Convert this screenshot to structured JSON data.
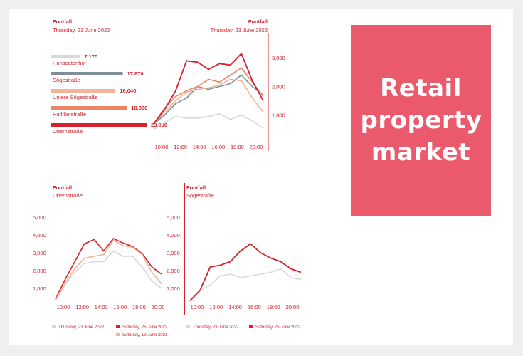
{
  "hero": {
    "title": "Retail property market"
  },
  "colors": {
    "brand_red": "#d3212d",
    "card": "#ea5a6c",
    "grey": "#d8d8d8",
    "slate": "#7f8f9a",
    "peach": "#f2b49a",
    "orange": "#ea8566"
  },
  "chart_data": [
    {
      "type": "bar",
      "title": "Footfall",
      "subtitle": "Thursday, 23 June 2022",
      "categories": [
        "Hanseatenhof",
        "Sögestraße",
        "Untere Sögestraße",
        "Hutfilterstraße",
        "Obernstraße"
      ],
      "values": [
        7170,
        17870,
        16040,
        18880,
        23800
      ],
      "value_labels": [
        "7,170",
        "17,870",
        "16,040",
        "18,880",
        "23,800"
      ],
      "xlim": [
        0,
        23800
      ]
    },
    {
      "type": "line",
      "title": "Footfall",
      "subtitle": "Thursday, 23 June 2022",
      "x": [
        10,
        11,
        12,
        13,
        14,
        15,
        16,
        17,
        18,
        19,
        20
      ],
      "xticks": [
        "10:00",
        "12:00",
        "14:00",
        "16:00",
        "18:00",
        "20:00"
      ],
      "yticks": [
        "1,000",
        "2,000",
        "3,000"
      ],
      "ylim": [
        0,
        3900
      ],
      "y_axis_side": "right",
      "series": [
        {
          "color": "#d8d8d8",
          "values": [
            500,
            750,
            950,
            900,
            900,
            950,
            1050,
            850,
            1000,
            800,
            550
          ]
        },
        {
          "color": "#7f8f9a",
          "values": [
            700,
            1000,
            1400,
            1600,
            2000,
            1900,
            2000,
            2100,
            2400,
            2000,
            1700
          ]
        },
        {
          "color": "#f2b49a",
          "values": [
            700,
            1100,
            1500,
            1800,
            1900,
            1950,
            2050,
            2250,
            2200,
            1600,
            1100
          ]
        },
        {
          "color": "#ea8566",
          "values": [
            700,
            1250,
            1650,
            1850,
            2000,
            2250,
            2150,
            2400,
            2650,
            2150,
            1650
          ]
        },
        {
          "color": "#d3212d",
          "values": [
            700,
            1200,
            1850,
            2900,
            2850,
            2600,
            2800,
            2750,
            3150,
            2200,
            1500
          ]
        }
      ]
    },
    {
      "type": "line",
      "title": "Footfall",
      "subtitle": "Obernstraße",
      "x": [
        9,
        10,
        11,
        12,
        13,
        14,
        15,
        16,
        17,
        18,
        19,
        20
      ],
      "xticks": [
        "10:00",
        "12:00",
        "14:00",
        "16:00",
        "18:00",
        "20:00"
      ],
      "yticks": [
        "1,000",
        "2,000",
        "3,000",
        "4,000",
        "5,000"
      ],
      "ylim": [
        0,
        5600
      ],
      "series": [
        {
          "name": "Thursday, 23 June 2022",
          "color": "#d8d8d8",
          "values": [
            300,
            1200,
            1900,
            2400,
            2500,
            2500,
            3100,
            2800,
            2800,
            2200,
            1400,
            1000
          ]
        },
        {
          "name": "Saturday, 25 June 2022",
          "color": "#d3212d",
          "values": [
            400,
            1500,
            2500,
            3500,
            3750,
            3100,
            3800,
            3550,
            3350,
            2950,
            2200,
            1800
          ]
        },
        {
          "name": "Saturday, 19 June 2021",
          "color": "#f2b49a",
          "values": [
            350,
            1300,
            2100,
            2700,
            2800,
            2900,
            3700,
            3400,
            3300,
            2900,
            1900,
            1250
          ]
        }
      ],
      "legend": "bottom"
    },
    {
      "type": "line",
      "title": "Footfall",
      "subtitle": "Sögestraße",
      "x": [
        9,
        10,
        11,
        12,
        13,
        14,
        15,
        16,
        17,
        18,
        19,
        20
      ],
      "xticks": [
        "10:00",
        "12:00",
        "14:00",
        "16:00",
        "18:00",
        "20:00"
      ],
      "yticks": [
        "1,000",
        "2,000",
        "3,000",
        "4,000",
        "5,000"
      ],
      "ylim": [
        0,
        5600
      ],
      "series": [
        {
          "name": "Thursday, 23 June 2022",
          "color": "#d8d8d8",
          "values": [
            300,
            900,
            1200,
            1700,
            1800,
            1600,
            1700,
            1800,
            1900,
            2100,
            1600,
            1500
          ]
        },
        {
          "name": "Saturday, 25 June 2022",
          "color": "#d3212d",
          "values": [
            300,
            900,
            2200,
            2300,
            2500,
            3100,
            3500,
            3000,
            2700,
            2500,
            2100,
            1900
          ]
        }
      ],
      "legend": "bottom"
    }
  ]
}
